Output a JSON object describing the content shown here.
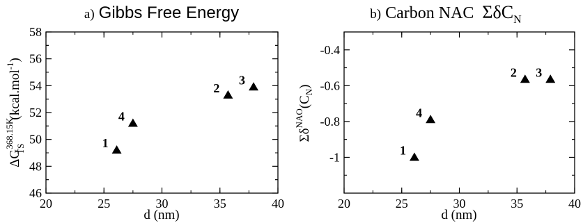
{
  "chart_data": [
    {
      "type": "scatter",
      "panel_label": "a)",
      "title": "Gibbs Free Energy",
      "xlabel": "d (nm)",
      "ylabel": {
        "base": "ΔG",
        "sup": "368.15K",
        "sub": "TS",
        "unit_pre": "(kcal.mol",
        "unit_sup": "-1",
        "unit_post": ")"
      },
      "xlim": [
        20,
        40
      ],
      "ylim": [
        46,
        58
      ],
      "x_ticks": [
        20,
        25,
        30,
        35,
        40
      ],
      "y_ticks": [
        46,
        48,
        50,
        52,
        54,
        56,
        58
      ],
      "x_tick_labels": [
        "20",
        "25",
        "30",
        "35",
        "40"
      ],
      "y_tick_labels": [
        "46",
        "48",
        "50",
        "52",
        "54",
        "56",
        "58"
      ],
      "marker": "triangle",
      "marker_color": "#000000",
      "points": [
        {
          "label": "1",
          "x": 26.1,
          "y": 49.2
        },
        {
          "label": "4",
          "x": 27.5,
          "y": 51.2
        },
        {
          "label": "2",
          "x": 35.7,
          "y": 53.3
        },
        {
          "label": "3",
          "x": 37.9,
          "y": 53.9
        }
      ]
    },
    {
      "type": "scatter",
      "panel_label": "b)",
      "title": "Carbon NAC",
      "title_math": {
        "base": "ΣδC",
        "sub": "N"
      },
      "xlabel": "d (nm)",
      "ylabel": {
        "base": "Σδ",
        "sup": "NAO",
        "pre": "(C",
        "sub": "N",
        "post": ")"
      },
      "xlim": [
        20,
        40
      ],
      "ylim": [
        -1.2,
        -0.3
      ],
      "x_ticks": [
        20,
        25,
        30,
        35,
        40
      ],
      "y_ticks": [
        -1.0,
        -0.8,
        -0.6,
        -0.4
      ],
      "x_tick_labels": [
        "20",
        "25",
        "30",
        "35",
        "40"
      ],
      "y_tick_labels": [
        "-1",
        "-0.8",
        "-0.6",
        "-0.4"
      ],
      "marker": "triangle",
      "marker_color": "#000000",
      "points": [
        {
          "label": "1",
          "x": 26.1,
          "y": -1.0
        },
        {
          "label": "4",
          "x": 27.5,
          "y": -0.79
        },
        {
          "label": "2",
          "x": 35.7,
          "y": -0.565
        },
        {
          "label": "3",
          "x": 37.9,
          "y": -0.565
        }
      ]
    }
  ]
}
